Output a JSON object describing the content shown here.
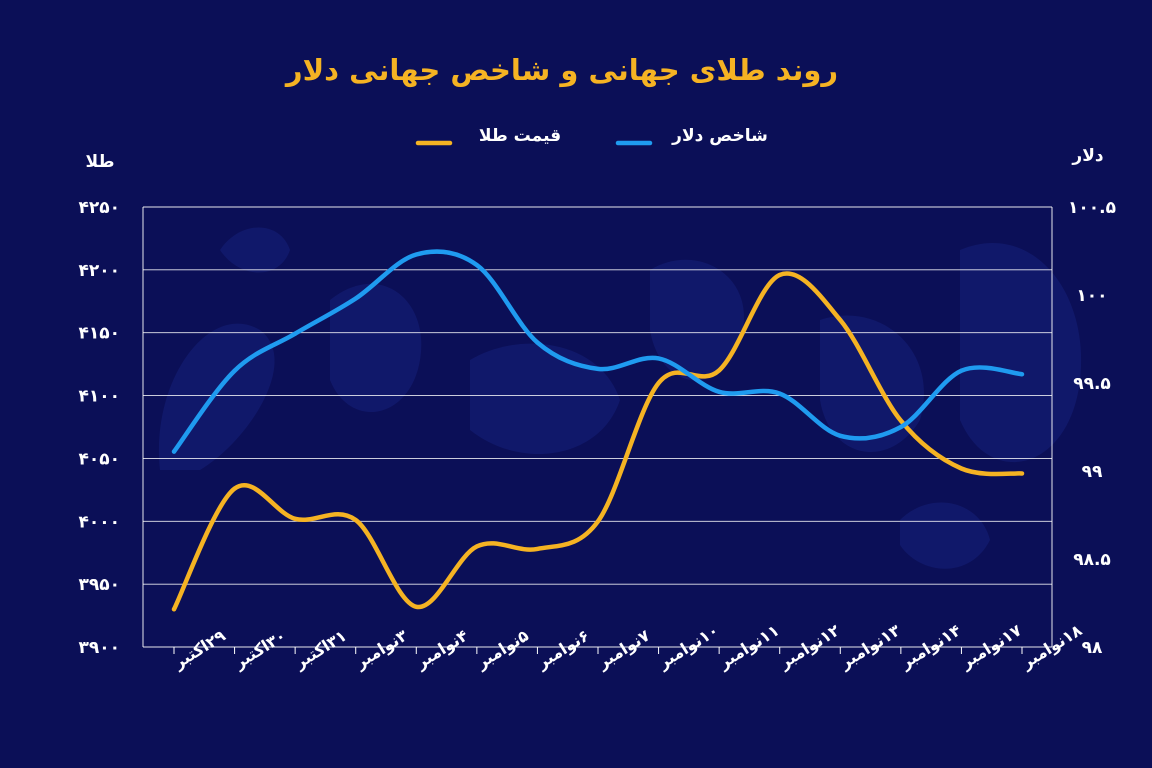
{
  "chart_data": {
    "type": "line",
    "title": "روند طلای جهانی و شاخص جهانی دلار",
    "left_axis_label": "طلا",
    "right_axis_label": "دلار",
    "legend_placement": "top-center",
    "grid": true,
    "categories": [
      "۲۹اکتبر",
      "۳۰اکتبر",
      "۳۱اکتبر",
      "۳نوامبر",
      "۴نوامبر",
      "۵نوامبر",
      "۶نوامبر",
      "۷نوامبر",
      "۱۰نوامبر",
      "۱۱نوامبر",
      "۱۲نوامبر",
      "۱۳نوامبر",
      "۱۴نوامبر",
      "۱۷نوامبر",
      "۱۸نوامبر"
    ],
    "left_axis": {
      "ylim": [
        3900,
        4250
      ],
      "ticks": [
        {
          "value": 3900,
          "label": "۳۹۰۰"
        },
        {
          "value": 3950,
          "label": "۳۹۵۰"
        },
        {
          "value": 4000,
          "label": "۴۰۰۰"
        },
        {
          "value": 4050,
          "label": "۴۰۵۰"
        },
        {
          "value": 4100,
          "label": "۴۱۰۰"
        },
        {
          "value": 4150,
          "label": "۴۱۵۰"
        },
        {
          "value": 4200,
          "label": "۴۲۰۰"
        },
        {
          "value": 4250,
          "label": "۴۲۵۰"
        }
      ]
    },
    "right_axis": {
      "ylim": [
        98,
        100.5
      ],
      "ticks": [
        {
          "value": 98,
          "label": "۹۸"
        },
        {
          "value": 98.5,
          "label": "۹۸.۵"
        },
        {
          "value": 99,
          "label": "۹۹"
        },
        {
          "value": 99.5,
          "label": "۹۹.۵"
        },
        {
          "value": 100,
          "label": "۱۰۰"
        },
        {
          "value": 100.5,
          "label": "۱۰۰.۵"
        }
      ]
    },
    "series": [
      {
        "name": "قیمت طلا",
        "axis": "left",
        "color": "#f5b323",
        "values": [
          3930,
          4026,
          4002,
          4001,
          3932,
          3980,
          3978,
          4000,
          4110,
          4120,
          4196,
          4160,
          4080,
          4042,
          4038
        ]
      },
      {
        "name": "شاخص دلار",
        "axis": "right",
        "color": "#1f9bf0",
        "values": [
          99.11,
          99.57,
          99.78,
          99.98,
          100.23,
          100.17,
          99.73,
          99.58,
          99.64,
          99.45,
          99.44,
          99.2,
          99.25,
          99.57,
          99.55
        ]
      }
    ]
  }
}
